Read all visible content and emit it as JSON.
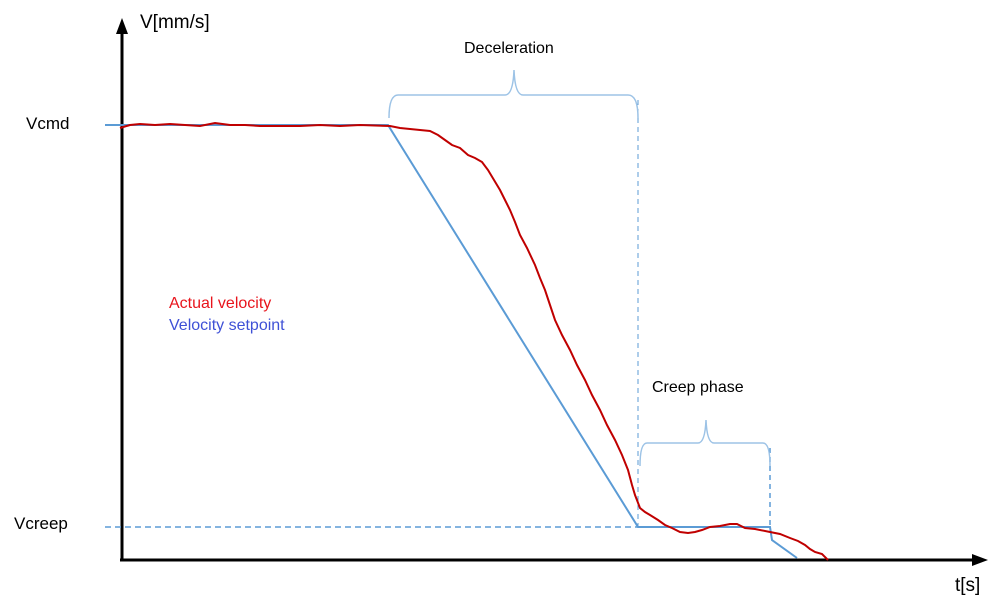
{
  "axes": {
    "y_label": "V[mm/s]",
    "x_label": "t[s]"
  },
  "levels": {
    "vcmd": "Vcmd",
    "vcreep": "Vcreep"
  },
  "annotations": {
    "deceleration": "Deceleration",
    "creep": "Creep phase"
  },
  "legend": [
    {
      "label": "Actual velocity",
      "color": "#e8141c"
    },
    {
      "label": "Velocity setpoint",
      "color": "#3f51d6"
    }
  ],
  "colors": {
    "actual": "#c00000",
    "setpoint": "#5b9bd5",
    "axis": "#000000"
  }
}
